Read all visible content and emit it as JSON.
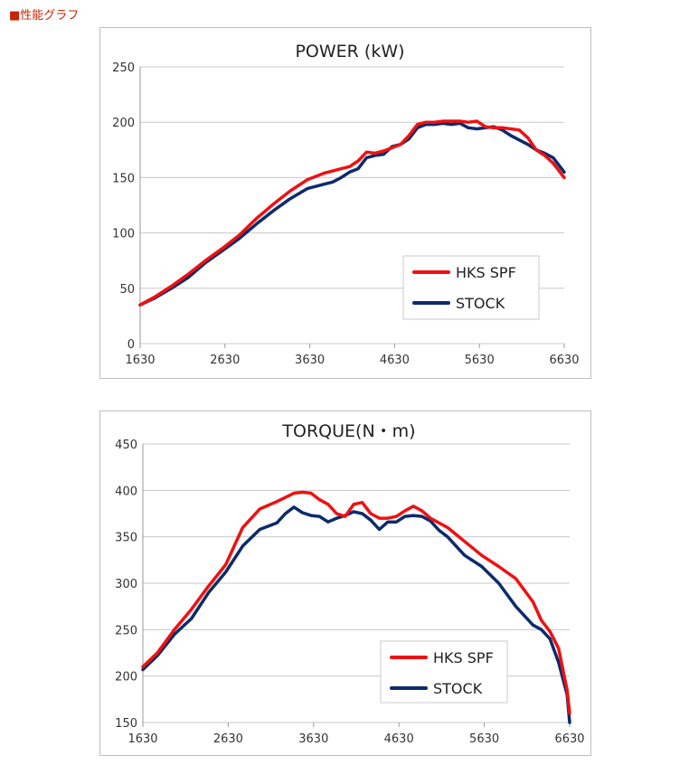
{
  "page": {
    "heading": "■性能グラフ"
  },
  "colors": {
    "hks": "#ee1111",
    "stock": "#0d2b6b",
    "grid": "#c8c8c8"
  },
  "chart_data": [
    {
      "type": "line",
      "title": "POWER (kW)",
      "xlabel": "",
      "ylabel": "",
      "xlim": [
        1630,
        6630
      ],
      "ylim": [
        0,
        250
      ],
      "xticks": [
        1630,
        2630,
        3630,
        4630,
        5630,
        6630
      ],
      "yticks": [
        0,
        50,
        100,
        150,
        200,
        250
      ],
      "legend_position": "bottom-right",
      "series": [
        {
          "name": "HKS SPF",
          "color": "#ee1111",
          "x": [
            1630,
            1800,
            2000,
            2200,
            2400,
            2600,
            2800,
            3000,
            3200,
            3400,
            3600,
            3800,
            3900,
            4000,
            4100,
            4200,
            4300,
            4400,
            4500,
            4600,
            4700,
            4800,
            4900,
            5000,
            5100,
            5200,
            5300,
            5400,
            5500,
            5600,
            5700,
            5800,
            5900,
            6000,
            6100,
            6200,
            6300,
            6400,
            6500,
            6630
          ],
          "values": [
            35,
            42,
            52,
            63,
            75,
            86,
            98,
            113,
            126,
            138,
            148,
            154,
            156,
            158,
            160,
            165,
            173,
            172,
            174,
            177,
            180,
            188,
            198,
            200,
            200,
            201,
            201,
            201,
            200,
            201,
            196,
            195,
            195,
            194,
            193,
            186,
            175,
            170,
            163,
            150
          ]
        },
        {
          "name": "STOCK",
          "color": "#0d2b6b",
          "x": [
            1630,
            1800,
            2000,
            2200,
            2400,
            2600,
            2800,
            3000,
            3200,
            3400,
            3600,
            3800,
            3900,
            4000,
            4100,
            4200,
            4300,
            4400,
            4500,
            4600,
            4700,
            4800,
            4900,
            5000,
            5100,
            5200,
            5300,
            5400,
            5500,
            5600,
            5700,
            5800,
            5900,
            6000,
            6100,
            6200,
            6300,
            6400,
            6500,
            6630
          ],
          "values": [
            35,
            41,
            50,
            60,
            73,
            84,
            95,
            108,
            120,
            131,
            140,
            144,
            146,
            150,
            155,
            158,
            168,
            170,
            171,
            178,
            180,
            185,
            195,
            198,
            198,
            199,
            198,
            199,
            195,
            194,
            195,
            196,
            193,
            188,
            184,
            180,
            175,
            172,
            168,
            155
          ]
        }
      ]
    },
    {
      "type": "line",
      "title": "TORQUE(N・m)",
      "xlabel": "",
      "ylabel": "",
      "xlim": [
        1630,
        6630
      ],
      "ylim": [
        150,
        450
      ],
      "xticks": [
        1630,
        2630,
        3630,
        4630,
        5630,
        6630
      ],
      "yticks": [
        150,
        200,
        250,
        300,
        350,
        400,
        450
      ],
      "legend_position": "bottom-right",
      "series": [
        {
          "name": "HKS SPF",
          "color": "#ee1111",
          "x": [
            1630,
            1800,
            2000,
            2200,
            2400,
            2600,
            2800,
            3000,
            3200,
            3400,
            3500,
            3600,
            3700,
            3800,
            3900,
            4000,
            4100,
            4200,
            4300,
            4400,
            4500,
            4600,
            4700,
            4800,
            4900,
            5000,
            5100,
            5200,
            5400,
            5600,
            5800,
            6000,
            6200,
            6300,
            6400,
            6500,
            6600,
            6630
          ],
          "values": [
            210,
            225,
            250,
            272,
            297,
            320,
            360,
            380,
            388,
            397,
            398,
            397,
            390,
            385,
            375,
            372,
            385,
            387,
            375,
            370,
            370,
            372,
            378,
            383,
            378,
            370,
            365,
            360,
            345,
            330,
            318,
            305,
            280,
            260,
            248,
            230,
            185,
            160
          ]
        },
        {
          "name": "STOCK",
          "color": "#0d2b6b",
          "x": [
            1630,
            1800,
            2000,
            2200,
            2400,
            2600,
            2800,
            3000,
            3200,
            3300,
            3400,
            3500,
            3600,
            3700,
            3800,
            3900,
            4000,
            4100,
            4200,
            4300,
            4400,
            4500,
            4600,
            4700,
            4800,
            4900,
            5000,
            5100,
            5200,
            5400,
            5600,
            5800,
            6000,
            6200,
            6300,
            6400,
            6500,
            6600,
            6630
          ],
          "values": [
            207,
            222,
            245,
            262,
            290,
            312,
            340,
            358,
            365,
            375,
            382,
            376,
            373,
            372,
            366,
            370,
            373,
            377,
            375,
            368,
            358,
            366,
            366,
            372,
            373,
            372,
            367,
            357,
            350,
            330,
            318,
            300,
            275,
            255,
            250,
            240,
            215,
            180,
            150
          ]
        }
      ]
    }
  ]
}
